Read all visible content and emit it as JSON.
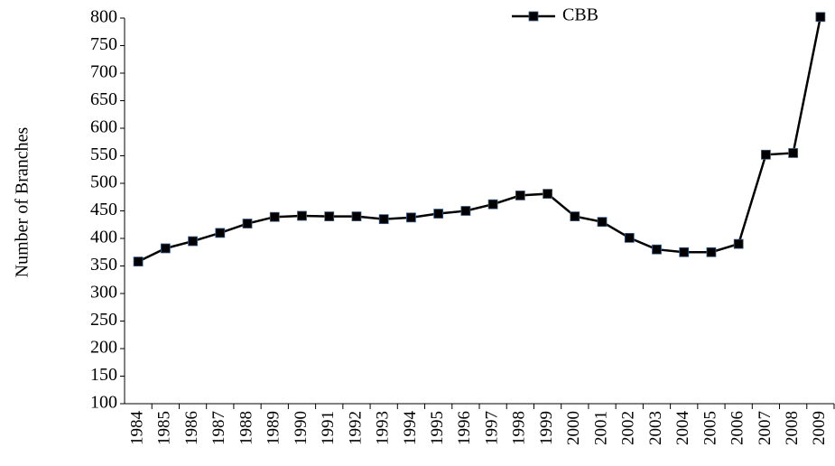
{
  "chart_data": {
    "type": "line",
    "y_label": "Number of Branches",
    "categories": [
      "1984",
      "1985",
      "1986",
      "1987",
      "1988",
      "1989",
      "1990",
      "1991",
      "1992",
      "1993",
      "1994",
      "1995",
      "1996",
      "1997",
      "1998",
      "1999",
      "2000",
      "2001",
      "2002",
      "2003",
      "2004",
      "2005",
      "2006",
      "2007",
      "2008",
      "2009"
    ],
    "series": [
      {
        "name": "CBB",
        "color": "#000000",
        "values": [
          358,
          382,
          395,
          410,
          427,
          439,
          441,
          440,
          440,
          435,
          438,
          445,
          450,
          462,
          478,
          481,
          440,
          430,
          401,
          380,
          375,
          375,
          390,
          552,
          555,
          802
        ]
      }
    ],
    "ylim": [
      100,
      800
    ],
    "yticks": [
      100,
      150,
      200,
      250,
      300,
      350,
      400,
      450,
      500,
      550,
      600,
      650,
      700,
      750,
      800
    ],
    "grid": false,
    "legend": "top"
  }
}
